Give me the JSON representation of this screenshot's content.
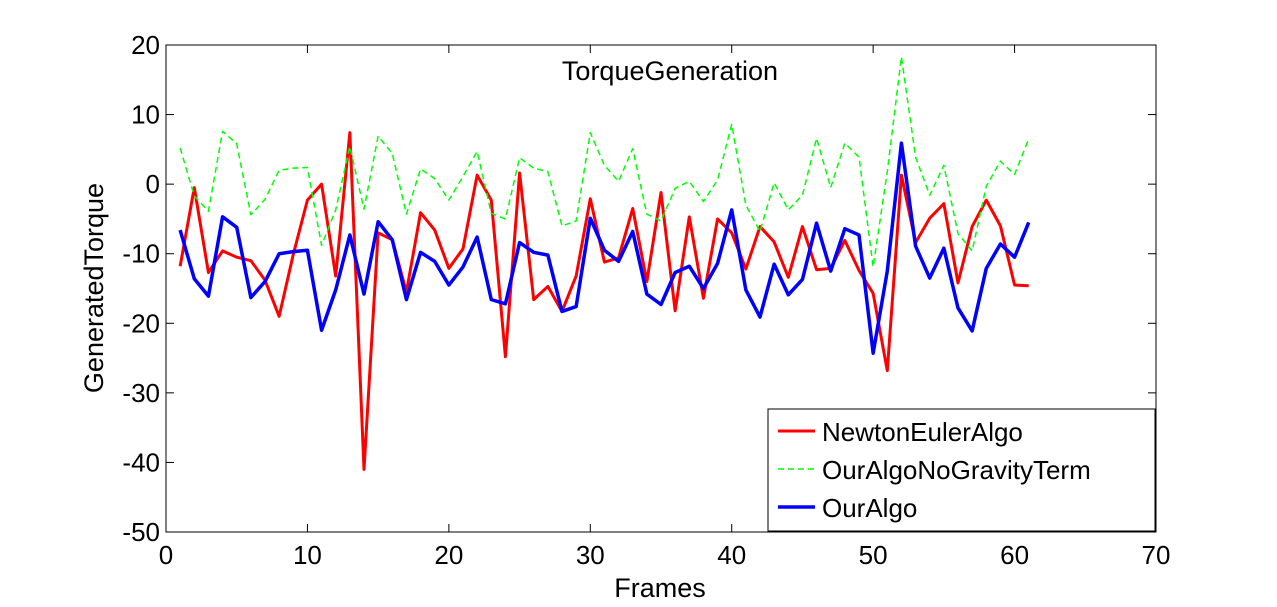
{
  "chart_data": {
    "type": "line",
    "title": "TorqueGeneration",
    "xlabel": "Frames",
    "ylabel": "GeneratedTorque",
    "xlim": [
      0,
      70
    ],
    "ylim": [
      -50,
      20
    ],
    "xticks": [
      0,
      10,
      20,
      30,
      40,
      50,
      60,
      70
    ],
    "yticks": [
      20,
      10,
      0,
      -10,
      -20,
      -30,
      -40,
      -50
    ],
    "grid": false,
    "legend_position": "bottom-right",
    "x": [
      1,
      2,
      3,
      4,
      5,
      6,
      7,
      8,
      9,
      10,
      11,
      12,
      13,
      14,
      15,
      16,
      17,
      18,
      19,
      20,
      21,
      22,
      23,
      24,
      25,
      26,
      27,
      28,
      29,
      30,
      31,
      32,
      33,
      34,
      35,
      36,
      37,
      38,
      39,
      40,
      41,
      42,
      43,
      44,
      45,
      46,
      47,
      48,
      49,
      50,
      51,
      52,
      53,
      54,
      55,
      56,
      57,
      58,
      59,
      60,
      61
    ],
    "series": [
      {
        "name": "NewtonEulerAlgo",
        "color": "#ff0000",
        "style": "solid",
        "width": 3,
        "values": [
          -11.8,
          -0.5,
          -12.7,
          -9.6,
          -10.5,
          -11,
          -13.8,
          -19,
          -10.1,
          -2.3,
          0,
          -13.2,
          7.4,
          -41,
          -7,
          -8,
          -15.5,
          -4.1,
          -6.6,
          -12.1,
          -9.3,
          1.3,
          -2.3,
          -24.8,
          1.6,
          -16.6,
          -14.7,
          -18.3,
          -13.2,
          -2.1,
          -11.2,
          -10.6,
          -3.5,
          -14,
          -1.2,
          -18.2,
          -4.7,
          -16.4,
          -5,
          -7,
          -12.2,
          -6.1,
          -8.3,
          -13.4,
          -6.1,
          -12.3,
          -12.1,
          -8.1,
          -12.4,
          -15.7,
          -26.8,
          1.3,
          -8.4,
          -4.9,
          -2.8,
          -14.2,
          -6.1,
          -2.3,
          -6,
          -14.5,
          -14.6
        ]
      },
      {
        "name": "OurAlgoNoGravityTerm",
        "color": "#00ff00",
        "style": "dashed",
        "width": 1.5,
        "values": [
          5.2,
          -1.7,
          -3.9,
          7.6,
          5.8,
          -4.4,
          -2.2,
          2,
          2.3,
          2.4,
          -8.8,
          -3.7,
          5.4,
          -3.6,
          6.9,
          4.4,
          -4.3,
          2.2,
          0.8,
          -2.3,
          1.1,
          4.7,
          -4.2,
          -5,
          3.8,
          2.3,
          1.8,
          -6,
          -5.3,
          7.4,
          2.7,
          0.4,
          5.1,
          -4.3,
          -5.3,
          -0.6,
          0.4,
          -2.5,
          0.6,
          8.6,
          -3,
          -6.8,
          0.2,
          -3.7,
          -1.6,
          6.6,
          -0.5,
          5.9,
          3.9,
          -11.9,
          1.8,
          18.3,
          3.9,
          -1.6,
          2.7,
          -7.1,
          -9.6,
          -0.3,
          3.3,
          1.4,
          6.5
        ]
      },
      {
        "name": "OurAlgo",
        "color": "#0000ff",
        "style": "solid",
        "width": 3.5,
        "values": [
          -6.6,
          -13.6,
          -16.1,
          -4.7,
          -6.2,
          -16.3,
          -14,
          -10,
          -9.7,
          -9.5,
          -21,
          -15.2,
          -7.3,
          -15.8,
          -5.4,
          -8,
          -16.6,
          -9.8,
          -11.1,
          -14.5,
          -11.9,
          -7.6,
          -16.6,
          -17.2,
          -8.4,
          -9.8,
          -10.2,
          -18.3,
          -17.6,
          -4.9,
          -9.5,
          -11.1,
          -6.8,
          -15.8,
          -17.3,
          -12.7,
          -11.8,
          -15,
          -11.4,
          -3.7,
          -15.2,
          -19.1,
          -11.5,
          -15.9,
          -13.7,
          -5.6,
          -12.5,
          -6.4,
          -7.3,
          -24.3,
          -12.5,
          5.9,
          -8.9,
          -13.5,
          -9.2,
          -17.8,
          -21.1,
          -12.1,
          -8.6,
          -10.5,
          -5.5
        ]
      }
    ]
  }
}
